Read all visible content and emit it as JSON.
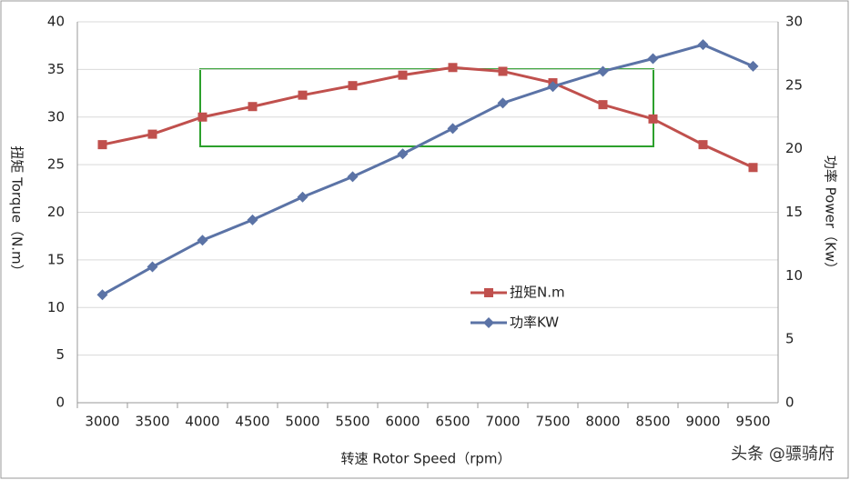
{
  "chart_data": {
    "type": "line",
    "x_label": "转速 Rotor Speed（rpm）",
    "y_label": "扭矩 Torque（N.m）",
    "y2_label": "功率 Power（Kw）",
    "watermark": "头条 @骠骑府",
    "categories": [
      "3000",
      "3500",
      "4000",
      "4500",
      "5000",
      "5500",
      "6000",
      "6500",
      "7000",
      "7500",
      "8000",
      "8500",
      "9000",
      "9500"
    ],
    "series": [
      {
        "name": "扭矩N.m",
        "color": "#c0504d",
        "marker": "square",
        "values": [
          27.1,
          28.2,
          30.0,
          31.1,
          32.3,
          33.3,
          34.4,
          35.2,
          34.8,
          33.6,
          31.3,
          29.8,
          27.1,
          24.7
        ]
      },
      {
        "name": "功率KW",
        "color": "#5b73a6",
        "marker": "diamond",
        "axis": "y2",
        "values": [
          8.5,
          10.7,
          12.8,
          14.4,
          16.2,
          17.8,
          19.6,
          21.6,
          23.6,
          24.9,
          26.1,
          27.1,
          28.2,
          26.5
        ]
      }
    ],
    "ylim": [
      0,
      40
    ],
    "yticks": [
      0,
      5,
      10,
      15,
      20,
      25,
      30,
      35,
      40
    ],
    "y2lim": [
      0,
      30
    ],
    "y2ticks": [
      0,
      5,
      10,
      15,
      20,
      25,
      30
    ],
    "grid": true,
    "legend": "center"
  }
}
